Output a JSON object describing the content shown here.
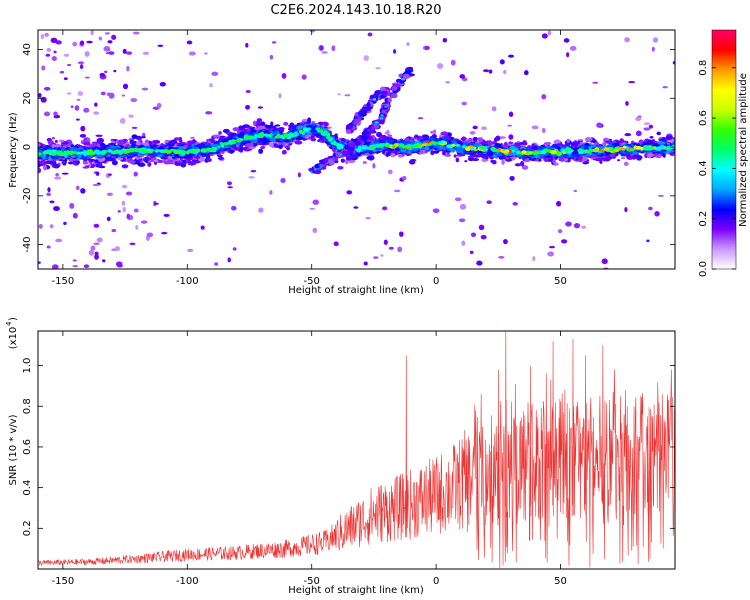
{
  "figure": {
    "title": "C2E6.2024.143.10.18.R20"
  },
  "chart_data": [
    {
      "type": "heatmap",
      "xlabel": "Height of straight line (km)",
      "ylabel": "Frequency (Hz)",
      "xlim": [
        -160,
        96
      ],
      "ylim": [
        -50,
        48
      ],
      "x_ticks": [
        -150,
        -100,
        -50,
        0,
        50
      ],
      "y_ticks": [
        -40,
        -20,
        0,
        20,
        40
      ],
      "colorbar": {
        "label": "Normalized spectral amplitude",
        "range": [
          0.0,
          0.95
        ],
        "ticks": [
          0.0,
          0.2,
          0.4,
          0.6,
          0.8
        ],
        "colors": [
          "#ffffff",
          "#cc99ff",
          "#7a00ff",
          "#0000ff",
          "#00aaff",
          "#00ffff",
          "#00ff66",
          "#33ff00",
          "#ccff00",
          "#ffff00",
          "#ff9900",
          "#ff0000",
          "#ff0066"
        ]
      },
      "ridge": [
        {
          "x": -160,
          "f": -2.5
        },
        {
          "x": -140,
          "f": -2.5
        },
        {
          "x": -120,
          "f": -1.5
        },
        {
          "x": -100,
          "f": -2
        },
        {
          "x": -90,
          "f": -1
        },
        {
          "x": -80,
          "f": 3
        },
        {
          "x": -70,
          "f": 5
        },
        {
          "x": -60,
          "f": 4
        },
        {
          "x": -50,
          "f": 8
        },
        {
          "x": -45,
          "f": 6
        },
        {
          "x": -40,
          "f": 1
        },
        {
          "x": -35,
          "f": -1
        },
        {
          "x": -20,
          "f": 1
        },
        {
          "x": -10,
          "f": 0
        },
        {
          "x": 0,
          "f": 2
        },
        {
          "x": 10,
          "f": 0
        },
        {
          "x": 30,
          "f": -2
        },
        {
          "x": 50,
          "f": -2
        },
        {
          "x": 70,
          "f": -1
        },
        {
          "x": 96,
          "f": 0
        }
      ],
      "branch_features": [
        {
          "points": [
            [
              -50,
              -10
            ],
            [
              -40,
              -4
            ],
            [
              -30,
              3
            ],
            [
              -22,
              12
            ],
            [
              -18,
              22
            ],
            [
              -10,
              32
            ]
          ]
        },
        {
          "points": [
            [
              -35,
              7
            ],
            [
              -30,
              13
            ],
            [
              -25,
              20
            ],
            [
              -20,
              23
            ]
          ]
        }
      ]
    },
    {
      "type": "line",
      "xlabel": "Height of straight line (km)",
      "ylabel": "SNR (10 * v/v)",
      "y_scale_label": "(x10",
      "y_scale_exponent": "4",
      "xlim": [
        -160,
        96
      ],
      "ylim": [
        0,
        1.17
      ],
      "x_ticks": [
        -150,
        -100,
        -50,
        0,
        50
      ],
      "y_ticks": [
        0.2,
        0.4,
        0.6,
        0.8,
        1.0
      ],
      "y_tick_labels": [
        "0.2",
        "0.4",
        "0.6",
        "0.8",
        "1.0"
      ],
      "color": "#ee3333",
      "envelope": [
        {
          "x": -160,
          "y": 0.03
        },
        {
          "x": -140,
          "y": 0.035
        },
        {
          "x": -120,
          "y": 0.05
        },
        {
          "x": -100,
          "y": 0.07
        },
        {
          "x": -80,
          "y": 0.08
        },
        {
          "x": -60,
          "y": 0.1
        },
        {
          "x": -45,
          "y": 0.13
        },
        {
          "x": -35,
          "y": 0.2
        },
        {
          "x": -25,
          "y": 0.27
        },
        {
          "x": -15,
          "y": 0.3
        },
        {
          "x": 0,
          "y": 0.36
        },
        {
          "x": 10,
          "y": 0.42
        },
        {
          "x": 20,
          "y": 0.47
        },
        {
          "x": 30,
          "y": 0.52
        },
        {
          "x": 45,
          "y": 0.52
        },
        {
          "x": 60,
          "y": 0.53
        },
        {
          "x": 75,
          "y": 0.54
        },
        {
          "x": 96,
          "y": 0.55
        }
      ],
      "peaks": [
        {
          "x": -12,
          "y": 1.05
        },
        {
          "x": 28,
          "y": 1.17
        },
        {
          "x": 47,
          "y": 1.12
        },
        {
          "x": 55,
          "y": 1.13
        },
        {
          "x": 67,
          "y": 1.1
        },
        {
          "x": 25,
          "y": 0.98
        },
        {
          "x": 38,
          "y": 1.0
        },
        {
          "x": 60,
          "y": 1.05
        },
        {
          "x": 85,
          "y": 0.75
        }
      ]
    }
  ]
}
